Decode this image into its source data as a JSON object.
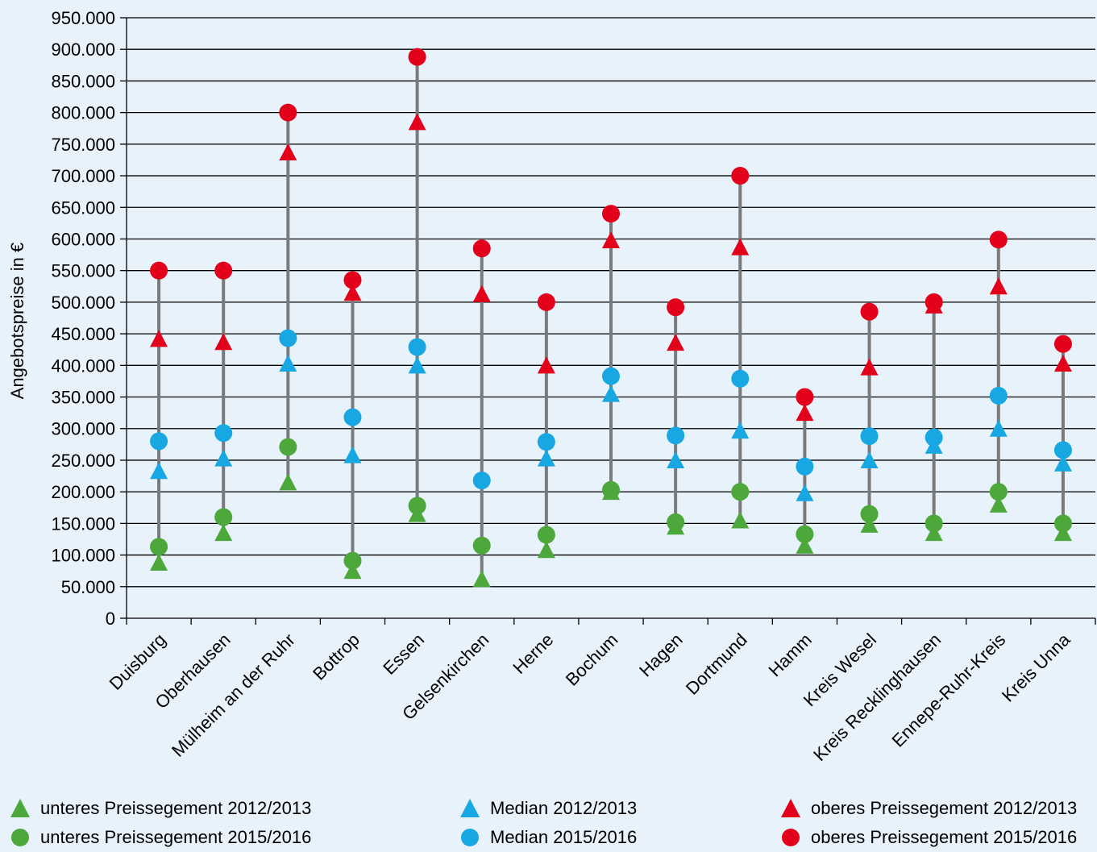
{
  "chart_data": {
    "type": "scatter",
    "ylabel": "Angebotspreise in €",
    "ylim": [
      0,
      950000
    ],
    "yticks": [
      0,
      50000,
      100000,
      150000,
      200000,
      250000,
      300000,
      350000,
      400000,
      450000,
      500000,
      550000,
      600000,
      650000,
      700000,
      750000,
      800000,
      850000,
      900000,
      950000
    ],
    "ytick_labels": [
      "0",
      "50.000",
      "100.000",
      "150.000",
      "200.000",
      "250.000",
      "300.000",
      "350.000",
      "400.000",
      "450.000",
      "500.000",
      "550.000",
      "600.000",
      "650.000",
      "700.000",
      "750.000",
      "800.000",
      "850.000",
      "900.000",
      "950.000"
    ],
    "grid": "horizontal",
    "legend_position": "bottom",
    "categories": [
      "Duisburg",
      "Oberhausen",
      "Mülheim an der Ruhr",
      "Bottrop",
      "Essen",
      "Gelsenkirchen",
      "Herne",
      "Bochum",
      "Hagen",
      "Dortmund",
      "Hamm",
      "Kreis Wesel",
      "Kreis Recklinghausen",
      "Ennepe-Ruhr-Kreis",
      "Kreis Unna"
    ],
    "series": [
      {
        "name": "unteres Preissegement 2012/2013",
        "marker": "triangle",
        "color": "#4ca83a",
        "values": [
          88000,
          135000,
          215000,
          75000,
          165000,
          62000,
          108000,
          200000,
          145000,
          155000,
          115000,
          148000,
          135000,
          180000,
          135000
        ]
      },
      {
        "name": "unteres Preissegement 2015/2016",
        "marker": "circle",
        "color": "#4ca83a",
        "values": [
          113000,
          160000,
          271000,
          91000,
          178000,
          115000,
          132000,
          203000,
          152000,
          200000,
          133000,
          165000,
          150000,
          200000,
          150000
        ]
      },
      {
        "name": "Median 2012/2013",
        "marker": "triangle",
        "color": "#17a8e3",
        "values": [
          233000,
          253000,
          403000,
          258000,
          400000,
          null,
          253000,
          355000,
          250000,
          297000,
          198000,
          250000,
          273000,
          300000,
          245000
        ]
      },
      {
        "name": "Median 2015/2016",
        "marker": "circle",
        "color": "#17a8e3",
        "values": [
          280000,
          293000,
          443000,
          318000,
          429000,
          218000,
          279000,
          383000,
          289000,
          379000,
          240000,
          288000,
          286000,
          352000,
          266000
        ]
      },
      {
        "name": "oberes Preissegement 2012/2013",
        "marker": "triangle",
        "color": "#e2001a",
        "values": [
          442000,
          437000,
          737000,
          515000,
          785000,
          513000,
          400000,
          598000,
          436000,
          587000,
          325000,
          397000,
          495000,
          525000,
          403000
        ]
      },
      {
        "name": "oberes Preissegement 2015/2016",
        "marker": "circle",
        "color": "#e2001a",
        "values": [
          550000,
          550000,
          800000,
          535000,
          888000,
          585000,
          500000,
          640000,
          492000,
          700000,
          350000,
          485000,
          500000,
          599000,
          434000
        ]
      }
    ]
  }
}
